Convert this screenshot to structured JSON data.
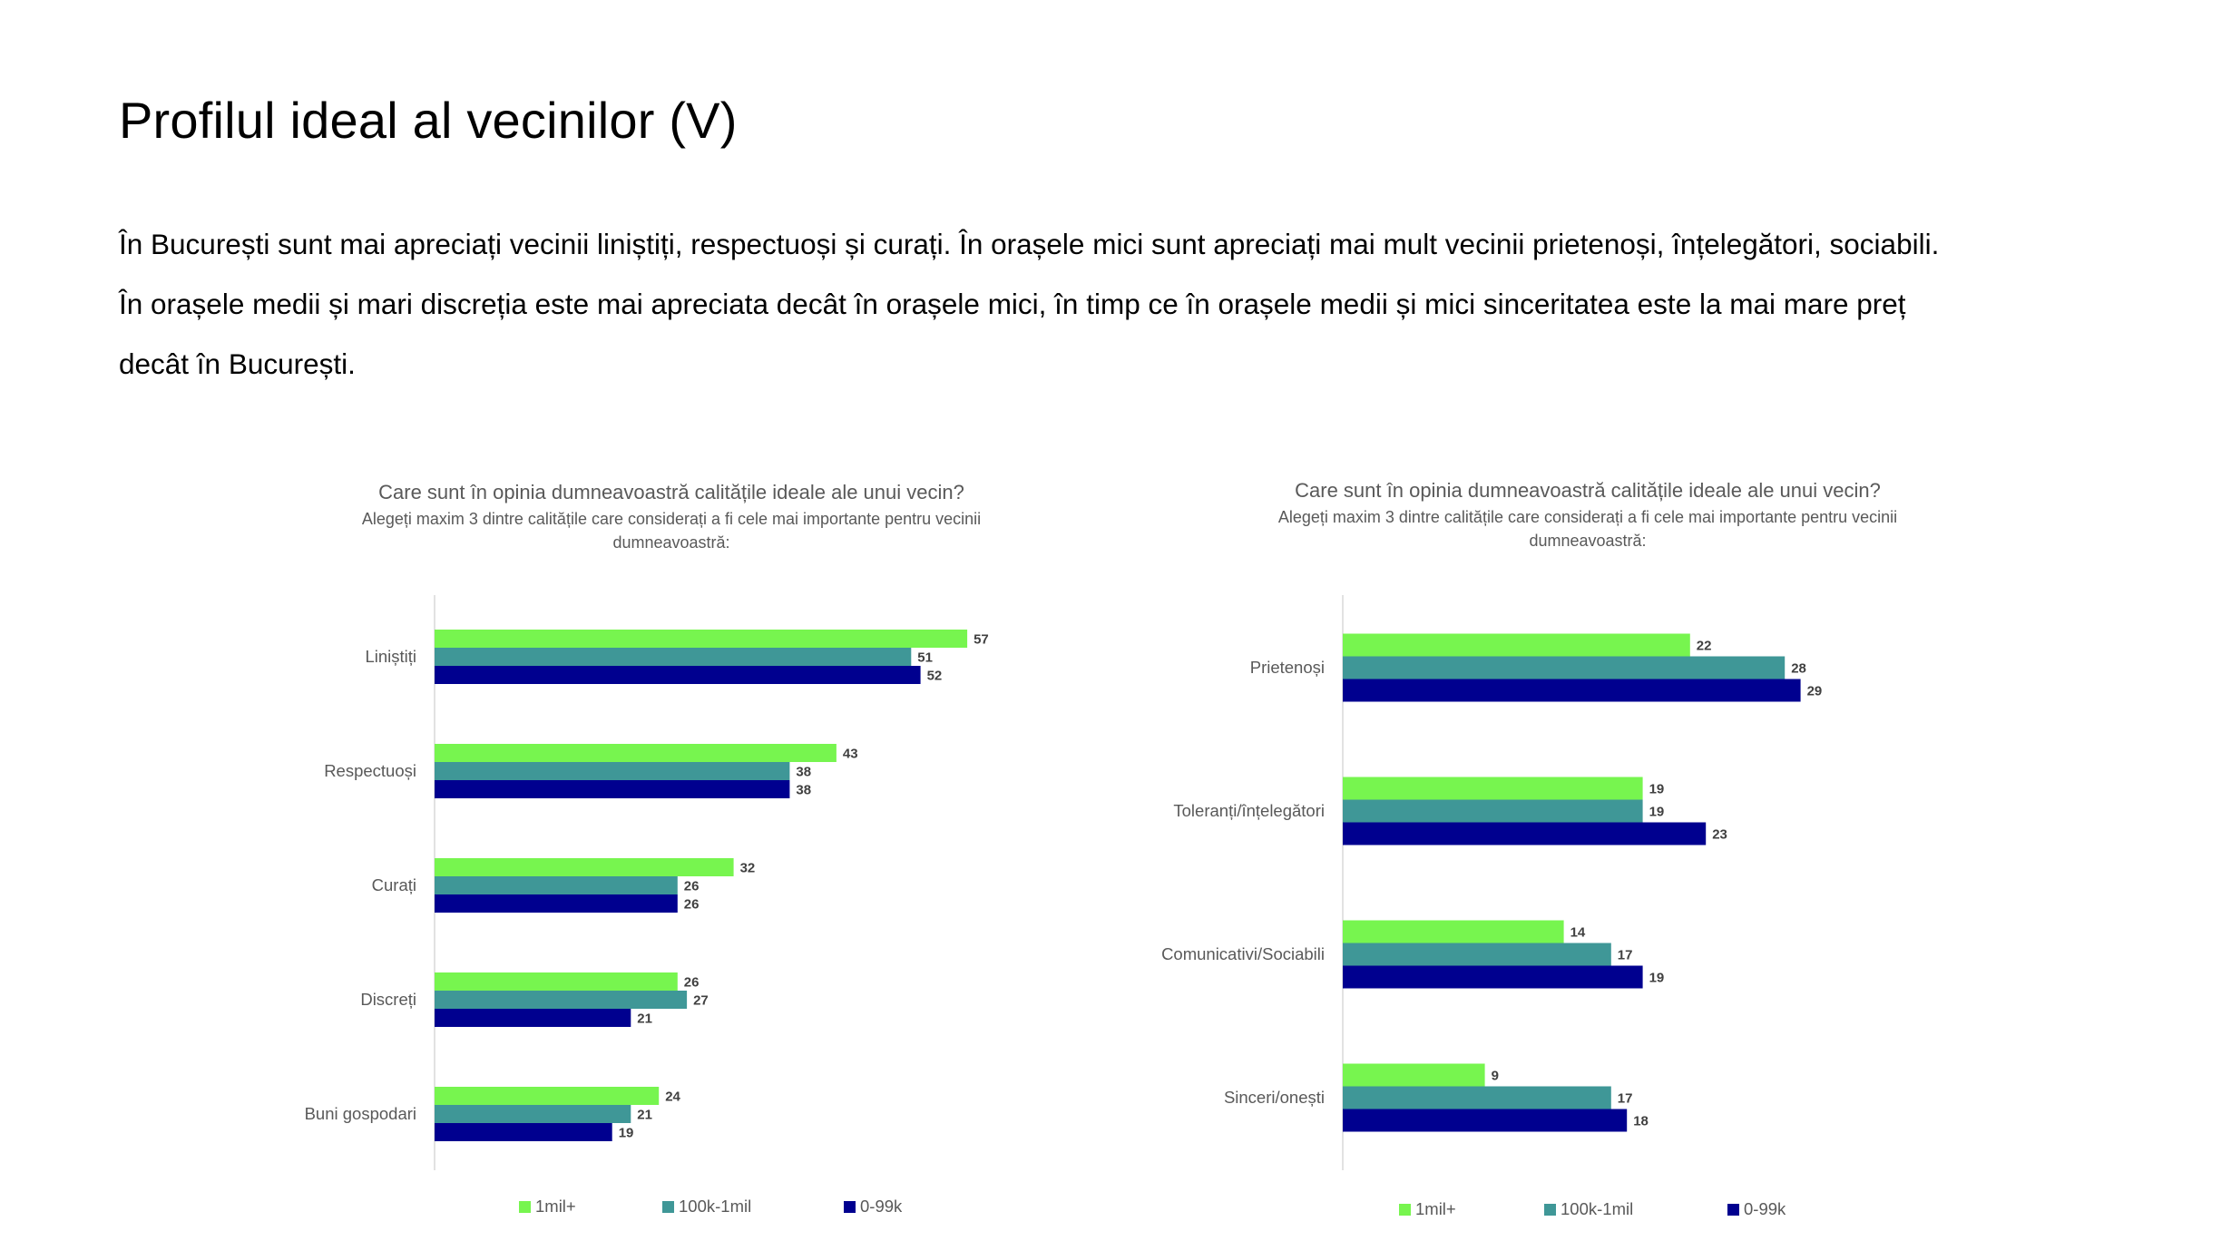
{
  "slide": {
    "title": "Profilul ideal al vecinilor (V)",
    "paragraph_lines": [
      "În București sunt mai apreciați vecinii liniștiți, respectuoși și curați. În orașele mici sunt apreciați mai mult vecinii prietenoși, înțelegători, sociabili.",
      "În orașele medii și mari discreția este mai apreciata decât în orașele mici, în timp ce în orașele medii și mici sinceritatea este la mai mare preț",
      "decât în București."
    ]
  },
  "colors": {
    "1mil+": "#77F54F",
    "100k-1mil": "#3F9797",
    "0-99k": "#00008F"
  },
  "chart_data": [
    {
      "type": "bar",
      "orientation": "horizontal",
      "title": "Care sunt în opinia dumneavoastră calitățile ideale ale unui vecin?",
      "subtitle_lines": [
        "Alegeți maxim 3 dintre calitățile care considerați a fi cele mai importante pentru vecinii",
        "dumneavoastră:"
      ],
      "categories": [
        "Liniștiți",
        "Respectuoși",
        "Curați",
        "Discreți",
        "Buni gospodari"
      ],
      "series": [
        {
          "name": "1mil+",
          "values": [
            57,
            43,
            32,
            26,
            24
          ]
        },
        {
          "name": "100k-1mil",
          "values": [
            51,
            38,
            26,
            27,
            21
          ]
        },
        {
          "name": "0-99k",
          "values": [
            52,
            38,
            26,
            21,
            19
          ]
        }
      ],
      "xlim": [
        0,
        60
      ],
      "grid": false,
      "legend": "bottom"
    },
    {
      "type": "bar",
      "orientation": "horizontal",
      "title": "Care sunt în opinia dumneavoastră calitățile ideale ale unui vecin?",
      "subtitle_lines": [
        "Alegeți maxim 3 dintre calitățile care considerați a fi cele mai importante pentru vecinii",
        "dumneavoastră:"
      ],
      "categories": [
        "Prietenoși",
        "Toleranți/înțelegători",
        "Comunicativi/Sociabili",
        "Sinceri/onești"
      ],
      "series": [
        {
          "name": "1mil+",
          "values": [
            22,
            19,
            14,
            9
          ]
        },
        {
          "name": "100k-1mil",
          "values": [
            28,
            19,
            17,
            17
          ]
        },
        {
          "name": "0-99k",
          "values": [
            29,
            23,
            19,
            18
          ]
        }
      ],
      "xlim": [
        0,
        31
      ],
      "grid": false,
      "legend": "bottom"
    }
  ]
}
